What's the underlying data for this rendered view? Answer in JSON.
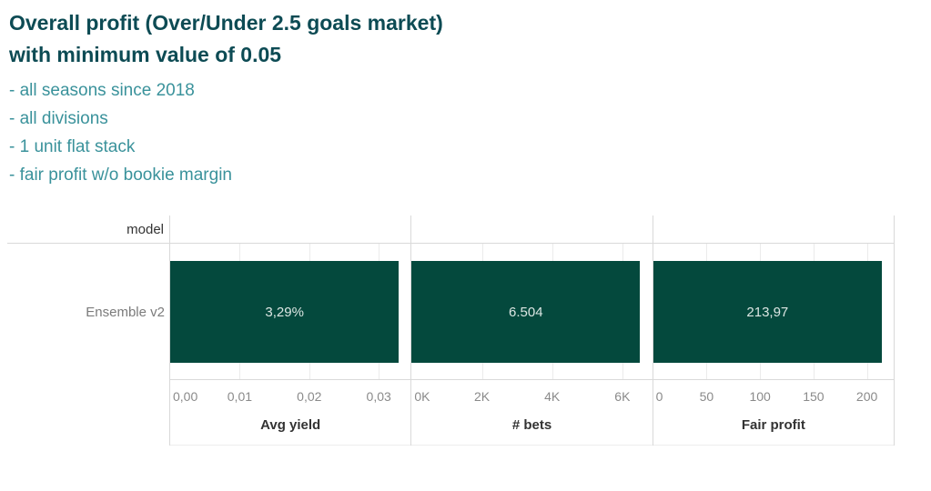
{
  "header": {
    "title_line1": "Overall profit (Over/Under 2.5 goals market)",
    "title_line2": "with minimum value of 0.05",
    "subtitles": [
      "- all seasons since 2018",
      "- all divisions",
      "- 1 unit flat stack",
      "- fair profit w/o bookie margin"
    ]
  },
  "colors": {
    "title": "#0d4b54",
    "subtitle": "#3a929b",
    "bar": "#04493d",
    "bar_label": "#dce6e3",
    "panel_border": "#d9d9d9",
    "gridline": "#ebebeb",
    "tick_label": "#8a8a8a",
    "row_label": "#7b7b7b",
    "axis_title": "#333333"
  },
  "chart_data": {
    "type": "bar",
    "orientation": "horizontal",
    "row_header": "model",
    "categories": [
      "Ensemble v2"
    ],
    "legend": "none",
    "grid": "vertical-light",
    "panels": [
      {
        "axis_label": "Avg yield",
        "value": 0.0329,
        "value_label": "3,29%",
        "axis_min": 0,
        "axis_max": 0.0346,
        "ticks": [
          {
            "value": 0,
            "label": "0,00"
          },
          {
            "value": 0.01,
            "label": "0,01"
          },
          {
            "value": 0.02,
            "label": "0,02"
          },
          {
            "value": 0.03,
            "label": "0,03"
          }
        ]
      },
      {
        "axis_label": "# bets",
        "value": 6504,
        "value_label": "6.504",
        "axis_min": 0,
        "axis_max": 6850,
        "ticks": [
          {
            "value": 0,
            "label": "0K"
          },
          {
            "value": 2000,
            "label": "2K"
          },
          {
            "value": 4000,
            "label": "4K"
          },
          {
            "value": 6000,
            "label": "6K"
          }
        ]
      },
      {
        "axis_label": "Fair profit",
        "value": 213.97,
        "value_label": "213,97",
        "axis_min": 0,
        "axis_max": 225,
        "ticks": [
          {
            "value": 0,
            "label": "0"
          },
          {
            "value": 50,
            "label": "50"
          },
          {
            "value": 100,
            "label": "100"
          },
          {
            "value": 150,
            "label": "150"
          },
          {
            "value": 200,
            "label": "200"
          }
        ]
      }
    ]
  }
}
